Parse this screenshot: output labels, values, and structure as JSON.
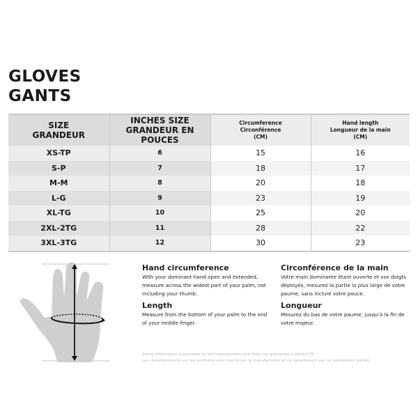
{
  "title": {
    "en": "GLOVES",
    "fr": "GANTS"
  },
  "table": {
    "headers": [
      {
        "line1": "SIZE",
        "line2": "GRANDEUR"
      },
      {
        "line1": "INCHES SIZE",
        "line2": "GRANDEUR EN POUCES"
      },
      {
        "line1": "Circumference",
        "line2": "Circonférence",
        "line3": "(CM)"
      },
      {
        "line1": "Hand length",
        "line2": "Longueur de la main",
        "line3": "(CM)"
      }
    ],
    "rows": [
      [
        "XS-TP",
        "6",
        "15",
        "16"
      ],
      [
        "S-P",
        "7",
        "18",
        "17"
      ],
      [
        "M-M",
        "8",
        "20",
        "18"
      ],
      [
        "L-G",
        "9",
        "23",
        "19"
      ],
      [
        "XL-TG",
        "10",
        "25",
        "20"
      ],
      [
        "2XL-2TG",
        "11",
        "28",
        "22"
      ],
      [
        "3XL-3TG",
        "12",
        "30",
        "23"
      ]
    ]
  },
  "instructions": {
    "en": {
      "circ_title": "Hand circumference",
      "circ_text": "With your dominant hand open and extended, measure across the widest part of your palm, not including your thumb.",
      "len_title": "Length",
      "len_text": "Measure from the bottom of your palm to the end of your middle finger."
    },
    "fr": {
      "circ_title": "Circonférence de la main",
      "circ_text": "Votre main dominante étant ouverte et vos doigts déployés, mesurez la partie la plus large de votre paume, sans inclure votre pouce.",
      "len_title": "Longueur",
      "len_text": "Mesurez du bas de votre paume, jusqu'à la fin de votre majeur."
    }
  },
  "disclaimer": {
    "en": "Sizing information is provided by the manufacturer and does not guarantee a perfect fit.",
    "fr": "Les renseignements sur les pointures sont fournis par le manufacturier et ne garantissent pas un ajustement parfait."
  },
  "illustration": {
    "icon": "hand-measure-icon",
    "hand_color": "#cfcfcf"
  }
}
